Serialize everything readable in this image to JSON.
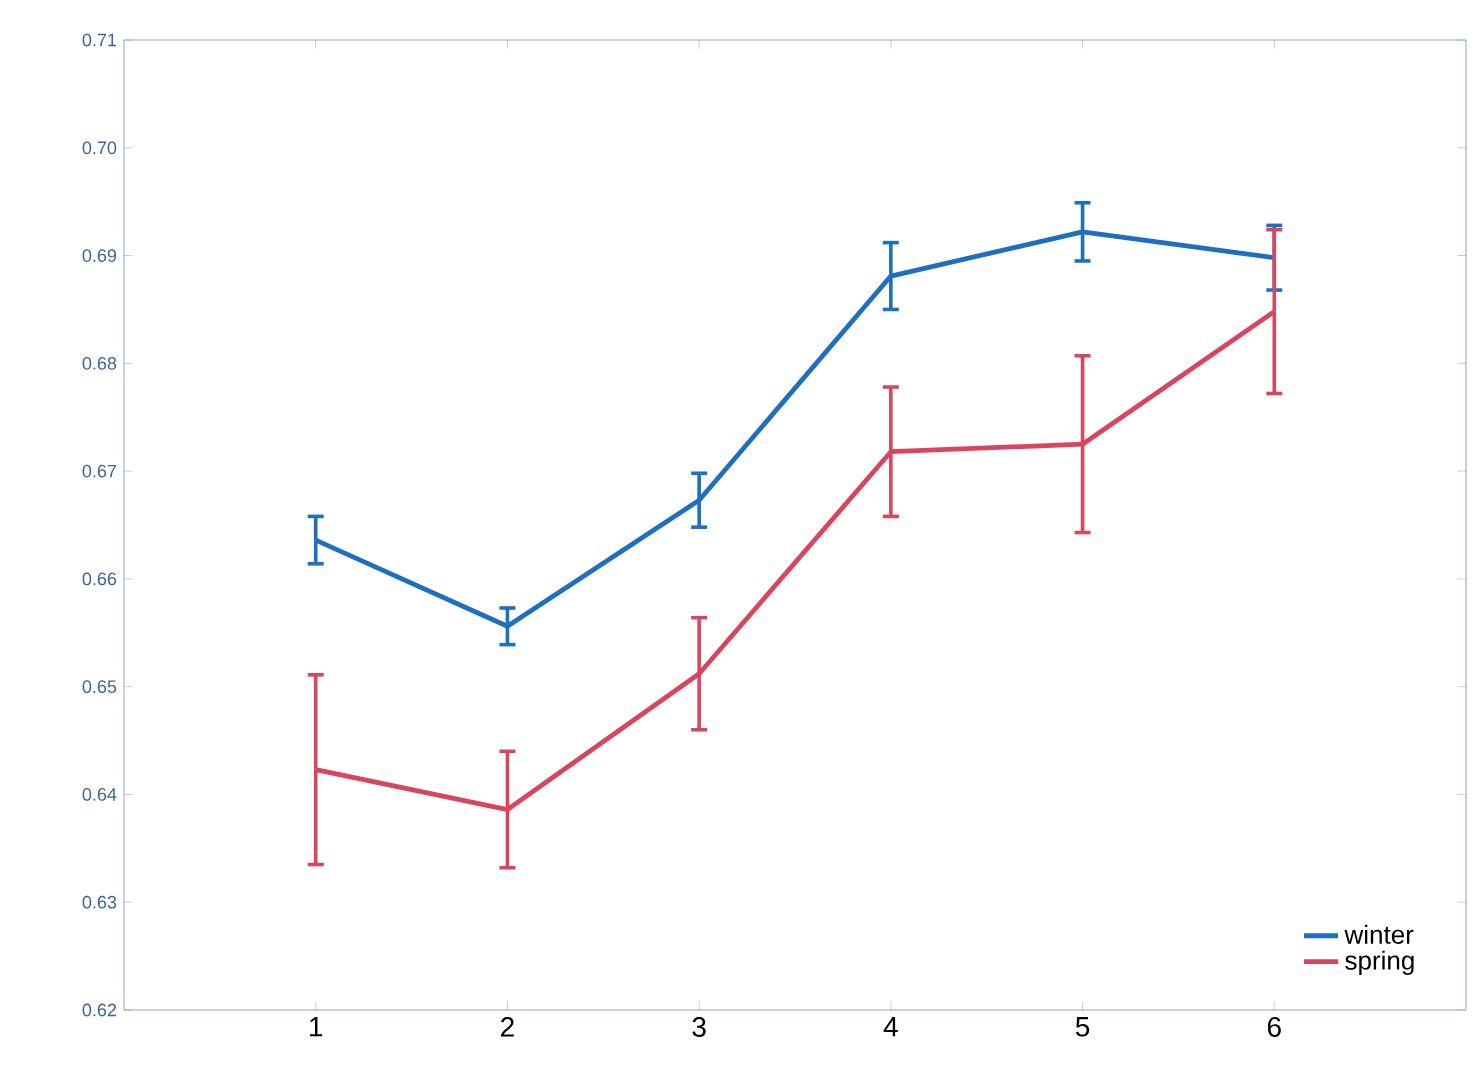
{
  "chart_data": {
    "type": "line",
    "x": [
      1,
      2,
      3,
      4,
      5,
      6
    ],
    "xlim": [
      0,
      7
    ],
    "xticks": [
      1,
      2,
      3,
      4,
      5,
      6
    ],
    "ylim": [
      0.62,
      0.71
    ],
    "yticks": [
      0.62,
      0.63,
      0.64,
      0.65,
      0.66,
      0.67,
      0.68,
      0.69,
      {
        "value": 0.7,
        "label": "0.70"
      },
      0.71
    ],
    "series": [
      {
        "name": "winter",
        "color": "#1f6fc0",
        "values": [
          0.6636,
          0.6556,
          0.6673,
          0.6881,
          0.6922,
          0.6898
        ],
        "errors": [
          0.0022,
          0.0017,
          0.0025,
          0.0031,
          0.0027,
          0.003
        ]
      },
      {
        "name": "spring",
        "color": "#d9455f",
        "values": [
          0.6423,
          0.6386,
          0.6512,
          0.6718,
          0.6725,
          0.6848
        ],
        "errors": [
          0.0088,
          0.0054,
          0.0052,
          0.006,
          0.0082,
          0.0076
        ]
      }
    ],
    "legend": "bottom right",
    "grid": false,
    "marker": "none",
    "line_style": "solid"
  }
}
